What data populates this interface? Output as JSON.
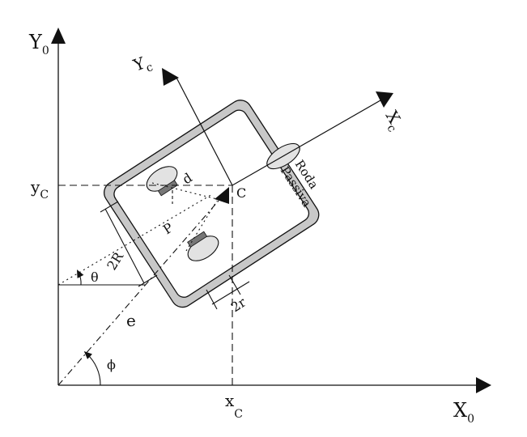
{
  "diagram": {
    "axes": {
      "y0_label": "Y",
      "y0_sub": "0",
      "x0_label": "X",
      "x0_sub": "0"
    },
    "robot_axes": {
      "yc_label": "Y",
      "yc_sub": "c",
      "xc_label": "X",
      "xc_sub": "c"
    },
    "coordinates": {
      "yc_label": "y",
      "yc_sub": "C",
      "xc_label": "x",
      "xc_sub": "C"
    },
    "labels": {
      "center": "C",
      "point_p": "P",
      "offset_d": "d",
      "wheel_base": "2R",
      "wheel_diameter": "2r",
      "theta": "θ",
      "phi": "ϕ",
      "distance_e": "e",
      "passive_wheel_line1": "Roda",
      "passive_wheel_line2": "Passiva"
    },
    "colors": {
      "ink": "#111111",
      "body_fill": "#c8c8c8",
      "wheel_fill": "#e2e2e2",
      "axle_fill": "#777777"
    }
  }
}
